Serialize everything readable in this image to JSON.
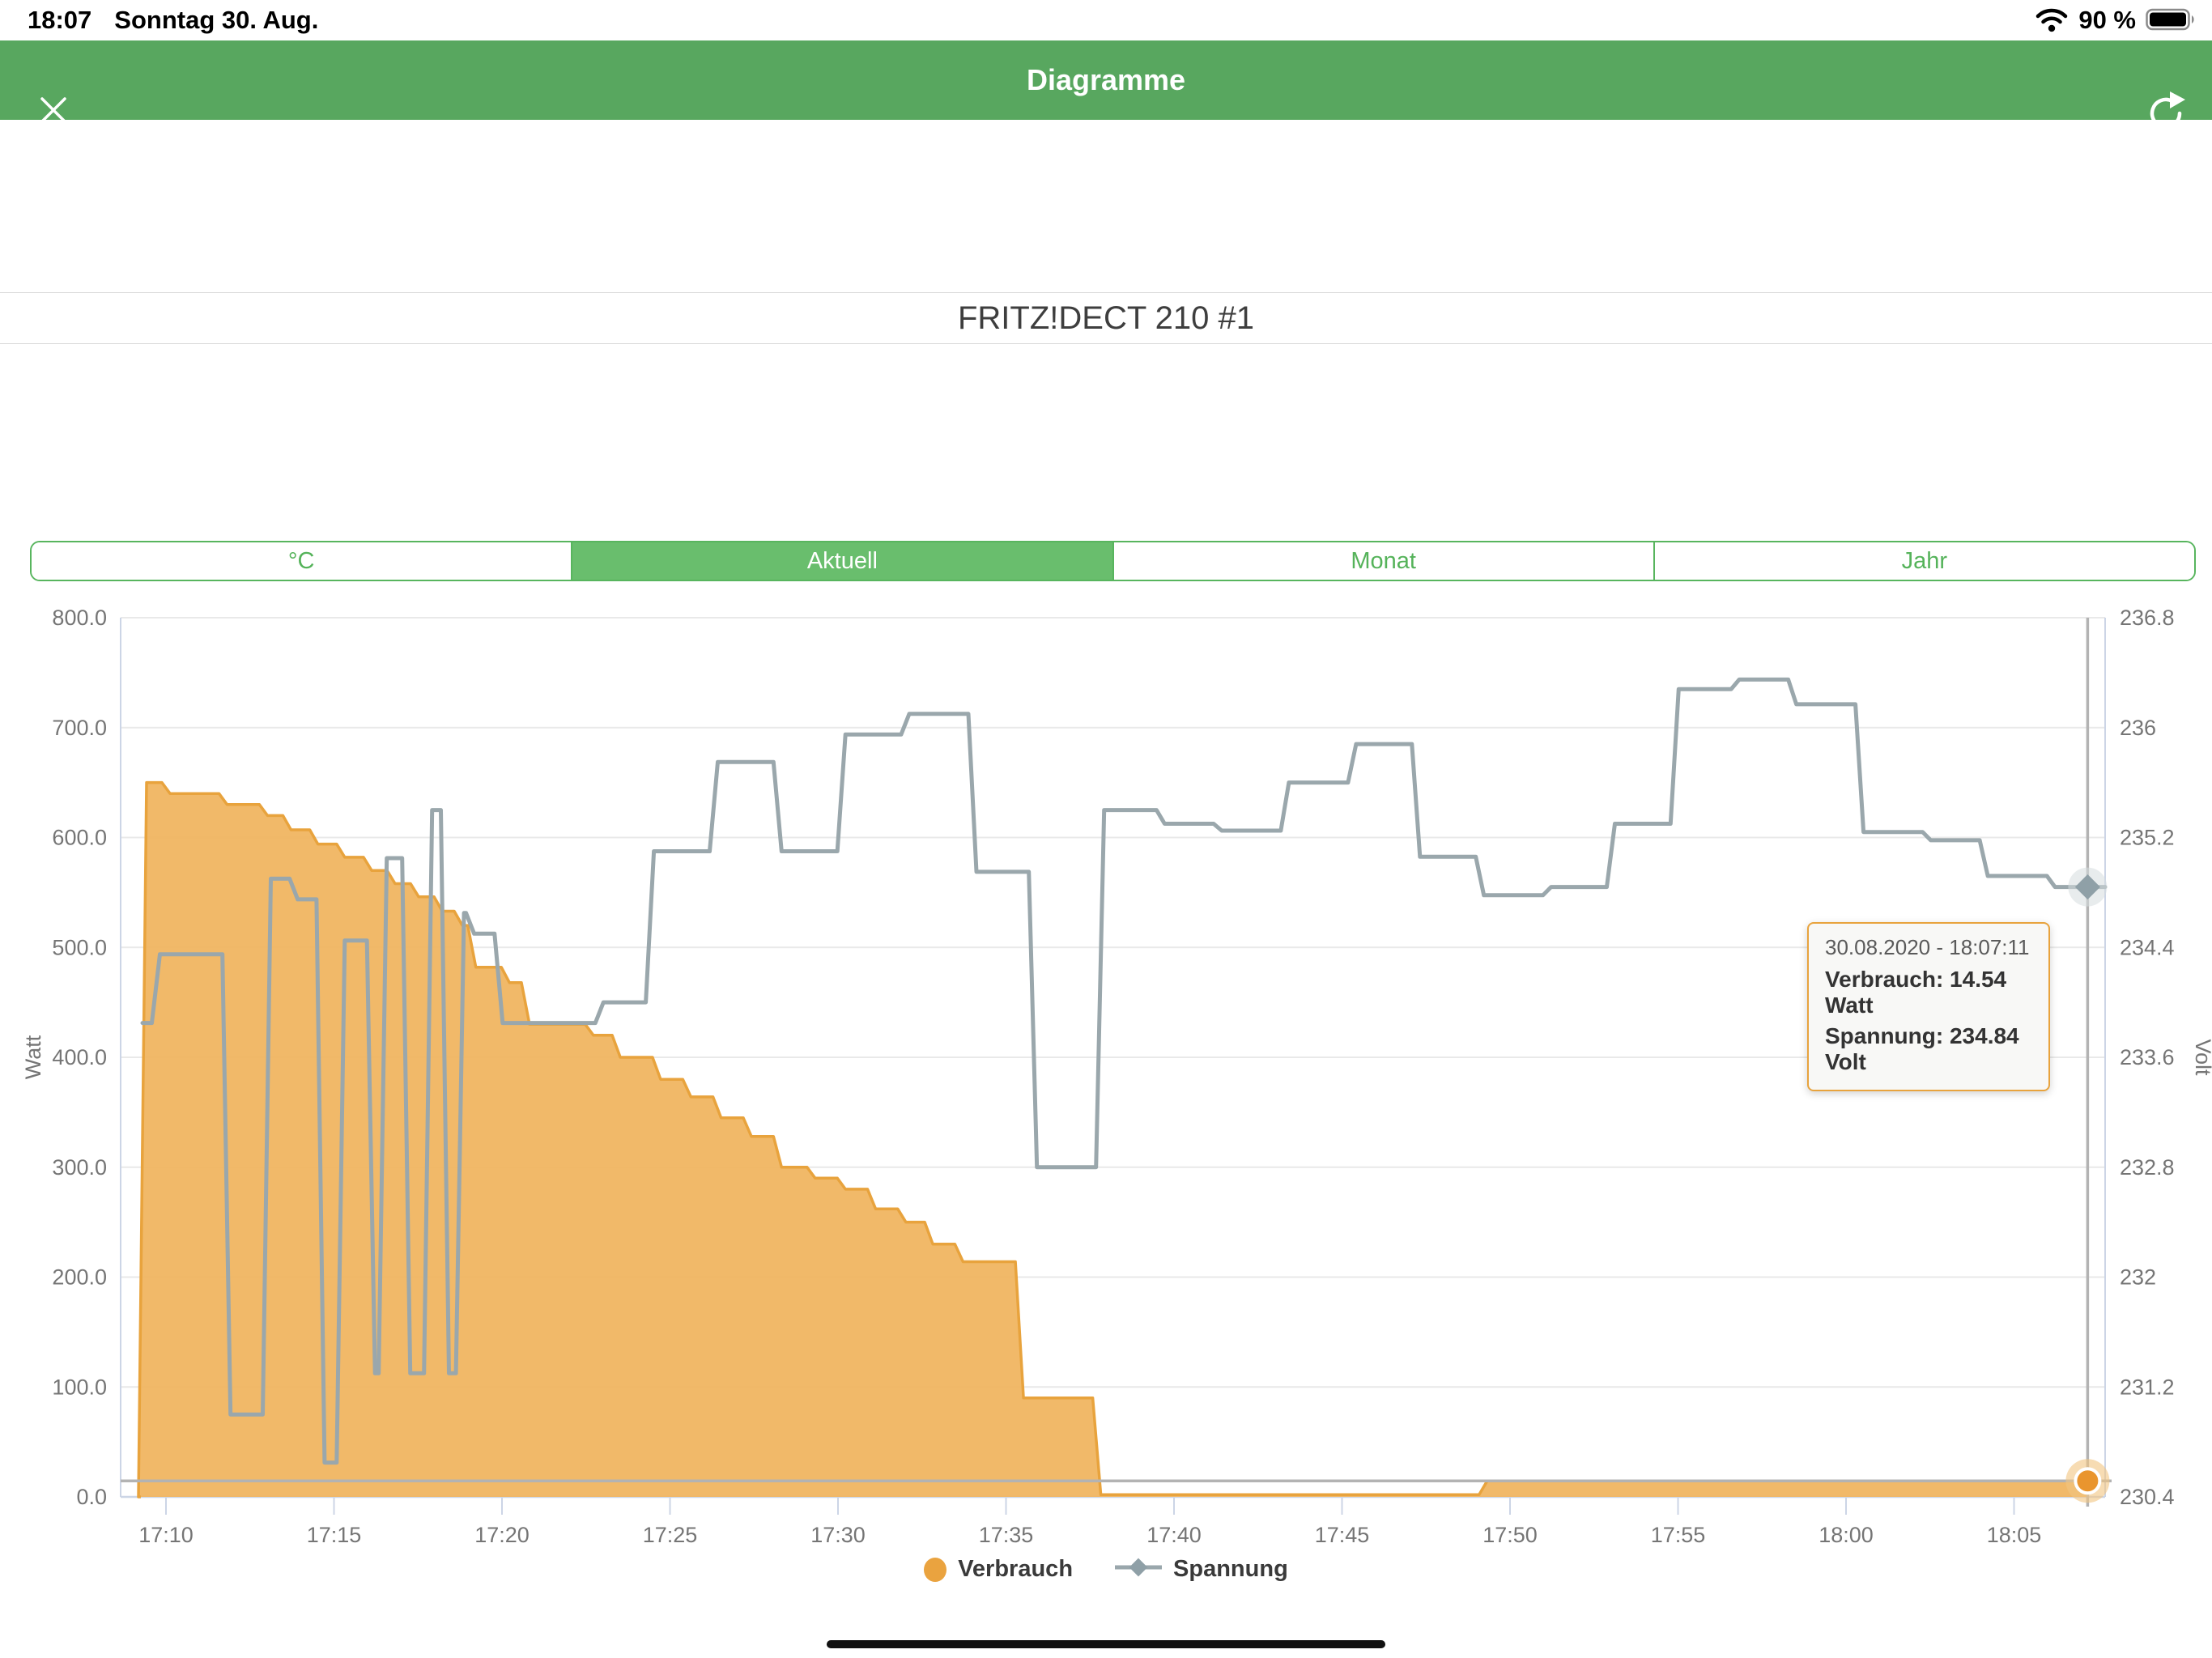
{
  "status_bar": {
    "time": "18:07",
    "date": "Sonntag 30. Aug.",
    "battery_percent": "90 %"
  },
  "header": {
    "title": "Diagramme"
  },
  "device_title": "FRITZ!DECT 210 #1",
  "tabs": [
    {
      "label": "°C",
      "selected": false
    },
    {
      "label": "Aktuell",
      "selected": true
    },
    {
      "label": "Monat",
      "selected": false
    },
    {
      "label": "Jahr",
      "selected": false
    }
  ],
  "tooltip": {
    "date": "30.08.2020 - 18:07:11",
    "verbrauch": "Verbrauch: 14.54 Watt",
    "spannung": "Spannung: 234.84 Volt"
  },
  "legend": [
    {
      "label": "Verbrauch",
      "marker": "orange-circle"
    },
    {
      "label": "Spannung",
      "marker": "gray-line-diamond"
    }
  ],
  "chart_data": {
    "type": "area",
    "subtype": "dual-axis step area (Watt) + step line (Volt)",
    "title": "FRITZ!DECT 210 #1",
    "x_unit": "time",
    "x_ticks": [
      {
        "minutes": 10,
        "label": "17:10"
      },
      {
        "minutes": 15,
        "label": "17:15"
      },
      {
        "minutes": 20,
        "label": "17:20"
      },
      {
        "minutes": 25,
        "label": "17:25"
      },
      {
        "minutes": 30,
        "label": "17:30"
      },
      {
        "minutes": 35,
        "label": "17:35"
      },
      {
        "minutes": 40,
        "label": "17:40"
      },
      {
        "minutes": 45,
        "label": "17:45"
      },
      {
        "minutes": 50,
        "label": "17:50"
      },
      {
        "minutes": 55,
        "label": "17:55"
      },
      {
        "minutes": 60,
        "label": "18:00"
      },
      {
        "minutes": 65,
        "label": "18:05"
      }
    ],
    "left_axis": {
      "title": "Watt",
      "min": 0,
      "max": 800,
      "tick_labels": [
        "800.0",
        "700.0",
        "600.0",
        "500.0",
        "400.0",
        "300.0",
        "200.0",
        "100.0",
        "0.0"
      ],
      "tick_values": [
        800,
        700,
        600,
        500,
        400,
        300,
        200,
        100,
        0
      ]
    },
    "right_axis": {
      "title": "Volt",
      "min": 230.4,
      "max": 236.8,
      "tick_labels": [
        "236.8",
        "236",
        "235.2",
        "234.4",
        "233.6",
        "232.8",
        "232",
        "231.2",
        "230.4"
      ],
      "tick_values": [
        236.8,
        236,
        235.2,
        234.4,
        233.6,
        232.8,
        232,
        231.2,
        230.4
      ]
    },
    "series": [
      {
        "name": "Verbrauch",
        "axis": "left",
        "type": "area",
        "step": true,
        "points_minutes_watt": [
          [
            9.25,
            0
          ],
          [
            9.3,
            650
          ],
          [
            10.0,
            640
          ],
          [
            11.7,
            630
          ],
          [
            12.9,
            620
          ],
          [
            13.6,
            607
          ],
          [
            14.4,
            594
          ],
          [
            15.2,
            582
          ],
          [
            16.0,
            570
          ],
          [
            16.7,
            558
          ],
          [
            17.4,
            546
          ],
          [
            18.1,
            533
          ],
          [
            18.7,
            520
          ],
          [
            19.1,
            482
          ],
          [
            20.1,
            468
          ],
          [
            20.7,
            430
          ],
          [
            22.6,
            420
          ],
          [
            23.4,
            400
          ],
          [
            24.6,
            380
          ],
          [
            25.5,
            364
          ],
          [
            26.4,
            345
          ],
          [
            27.3,
            328
          ],
          [
            28.2,
            300
          ],
          [
            29.2,
            290
          ],
          [
            30.1,
            280
          ],
          [
            31.0,
            262
          ],
          [
            31.9,
            250
          ],
          [
            32.7,
            230
          ],
          [
            33.6,
            214
          ],
          [
            35.4,
            90
          ],
          [
            37.7,
            2
          ],
          [
            49.2,
            14.5
          ],
          [
            67.19,
            14.54
          ]
        ]
      },
      {
        "name": "Spannung",
        "axis": "right",
        "type": "line",
        "step": true,
        "points_minutes_volt": [
          [
            9.3,
            233.85
          ],
          [
            9.7,
            234.35
          ],
          [
            11.8,
            231.0
          ],
          [
            13.0,
            234.9
          ],
          [
            13.8,
            234.75
          ],
          [
            14.6,
            230.65
          ],
          [
            15.2,
            234.45
          ],
          [
            16.1,
            231.3
          ],
          [
            16.45,
            235.05
          ],
          [
            17.15,
            231.3
          ],
          [
            17.8,
            235.4
          ],
          [
            18.3,
            231.3
          ],
          [
            18.75,
            234.65
          ],
          [
            19.05,
            234.5
          ],
          [
            19.9,
            233.85
          ],
          [
            22.9,
            234.0
          ],
          [
            24.4,
            235.1
          ],
          [
            26.3,
            235.75
          ],
          [
            28.2,
            235.1
          ],
          [
            30.1,
            235.95
          ],
          [
            32.0,
            236.1
          ],
          [
            34.0,
            234.95
          ],
          [
            35.8,
            232.8
          ],
          [
            37.8,
            235.4
          ],
          [
            39.6,
            235.3
          ],
          [
            41.3,
            235.25
          ],
          [
            43.3,
            235.6
          ],
          [
            45.3,
            235.88
          ],
          [
            47.2,
            235.06
          ],
          [
            49.1,
            234.78
          ],
          [
            51.1,
            234.84
          ],
          [
            53.0,
            235.3
          ],
          [
            54.9,
            236.28
          ],
          [
            56.7,
            236.35
          ],
          [
            58.4,
            236.17
          ],
          [
            60.4,
            235.24
          ],
          [
            62.4,
            235.18
          ],
          [
            64.1,
            234.92
          ],
          [
            66.1,
            234.84
          ],
          [
            67.19,
            234.84
          ]
        ]
      }
    ],
    "crosshair": {
      "minutes": 67.19,
      "watt": 14.54,
      "volt": 234.84
    },
    "colors": {
      "area_fill": "#f0b561",
      "area_stroke": "#e8a33d",
      "line": "#9aa7ac",
      "grid": "#e9e9e9",
      "axis": "#ccd5e6",
      "tick_text": "#757575",
      "crosshair": "#b3b3b3",
      "marker_circle": "#e9952e",
      "header_green": "#58a75f",
      "tab_green": "#69be6d"
    },
    "grid": true,
    "legend_position": "bottom-center"
  }
}
